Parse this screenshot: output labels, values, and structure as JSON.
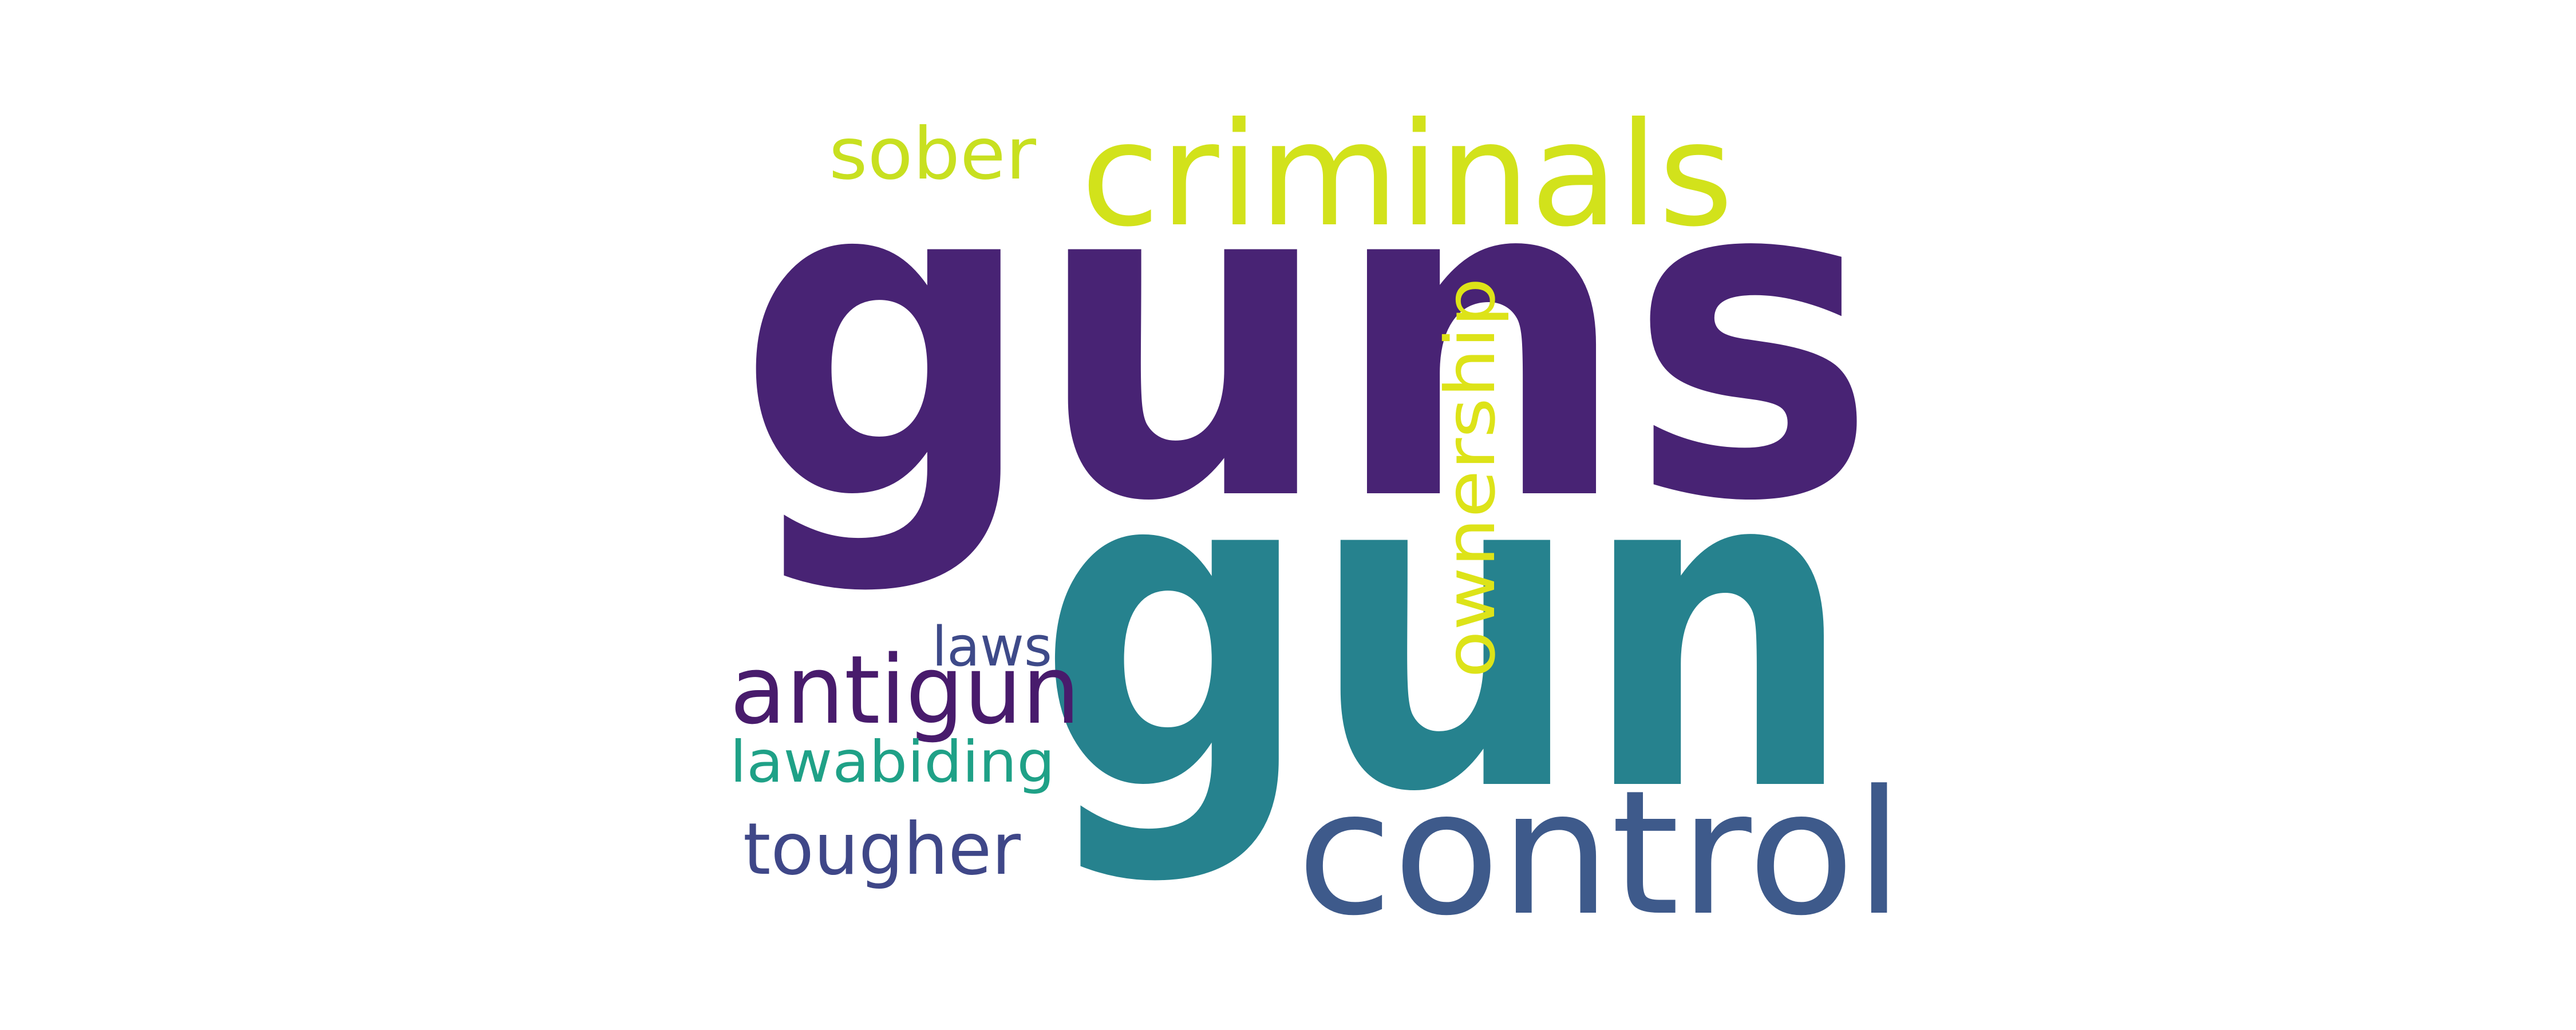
{
  "words": [
    {
      "id": "guns",
      "text": "guns",
      "color": "#482374"
    },
    {
      "id": "gun",
      "text": "gun",
      "color": "#26828E"
    },
    {
      "id": "criminals",
      "text": "criminals",
      "color": "#D2E21B"
    },
    {
      "id": "control",
      "text": "control",
      "color": "#3E5A8B"
    },
    {
      "id": "antigun",
      "text": "antigun",
      "color": "#481B6C"
    },
    {
      "id": "ownership",
      "text": "ownership",
      "color": "#DDE318"
    },
    {
      "id": "sober",
      "text": "sober",
      "color": "#C8E020"
    },
    {
      "id": "laws",
      "text": "laws",
      "color": "#3E4A89"
    },
    {
      "id": "lawabiding",
      "text": "lawabiding",
      "color": "#1FA187"
    },
    {
      "id": "tougher",
      "text": "tougher",
      "color": "#3F4788"
    }
  ]
}
